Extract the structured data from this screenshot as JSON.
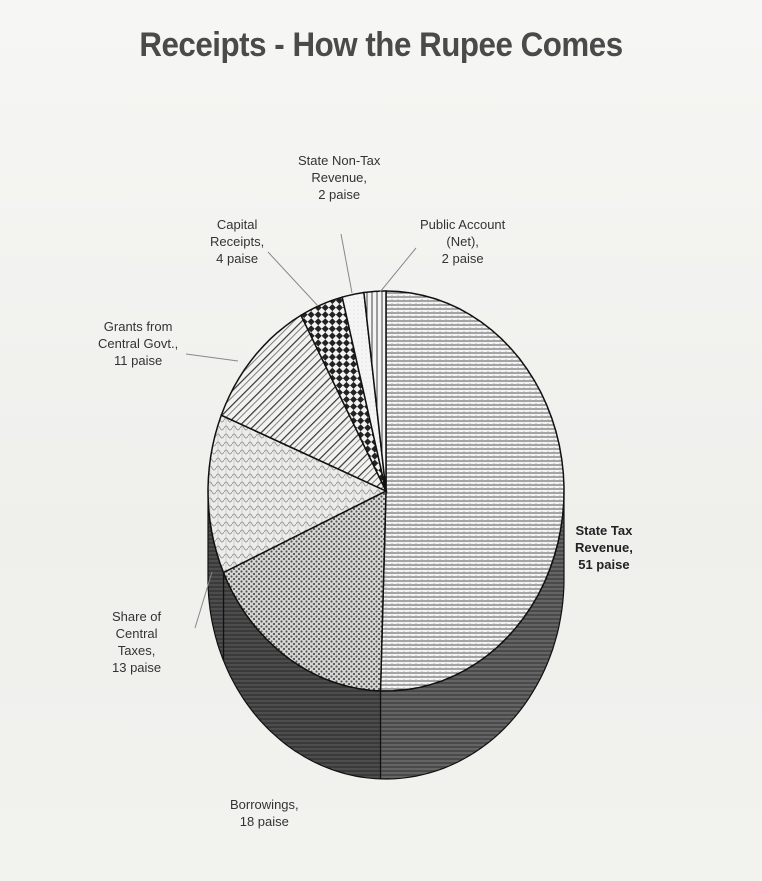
{
  "chart_data": {
    "type": "pie",
    "title": "Receipts - How the Rupee Comes",
    "slices": [
      {
        "label": "State Tax Revenue, 51 paise",
        "value": 51
      },
      {
        "label": "Borrowings, 18 paise",
        "value": 18
      },
      {
        "label": "Share of Central Taxes, 13 paise",
        "value": 13
      },
      {
        "label": "Grants from Central Govt., 11 paise",
        "value": 11
      },
      {
        "label": "Capital Receipts, 4 paise",
        "value": 4
      },
      {
        "label": "State Non-Tax Revenue, 2 paise",
        "value": 2
      },
      {
        "label": "Public Account (Net), 2 paise",
        "value": 2
      }
    ],
    "labels": {
      "state_tax": "State Tax\nRevenue,\n51 paise",
      "borrowings": "Borrowings,\n18 paise",
      "share_central": "Share of\nCentral\nTaxes,\n13 paise",
      "grants": "Grants from\nCentral Govt.,\n11 paise",
      "capital": "Capital\nReceipts,\n4 paise",
      "non_tax": "State Non-Tax\nRevenue,\n2 paise",
      "public_account": "Public Account\n(Net),\n2 paise"
    }
  }
}
